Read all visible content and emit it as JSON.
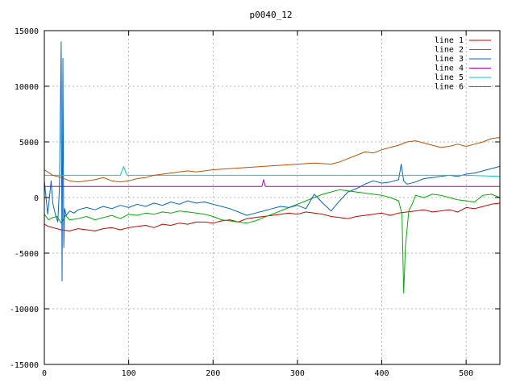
{
  "chart_data": {
    "type": "line",
    "title": "p0040_12",
    "xlabel": "",
    "ylabel": "",
    "xlim": [
      0,
      540
    ],
    "ylim": [
      -15000,
      15000
    ],
    "xticks": [
      0,
      100,
      200,
      300,
      400,
      500
    ],
    "yticks": [
      -15000,
      -10000,
      -5000,
      0,
      5000,
      10000,
      15000
    ],
    "grid": true,
    "legend_position": "top-right",
    "series": [
      {
        "name": "line 1",
        "color": "#cc0000",
        "x": [
          0,
          5,
          10,
          20,
          30,
          40,
          50,
          60,
          70,
          80,
          90,
          100,
          110,
          120,
          130,
          140,
          150,
          160,
          170,
          180,
          190,
          200,
          210,
          220,
          230,
          240,
          250,
          260,
          270,
          280,
          290,
          300,
          310,
          320,
          330,
          340,
          350,
          360,
          370,
          380,
          390,
          400,
          410,
          420,
          430,
          440,
          450,
          460,
          470,
          480,
          490,
          500,
          510,
          520,
          530,
          540
        ],
        "y": [
          -2400,
          -2600,
          -2700,
          -2900,
          -3000,
          -2800,
          -2900,
          -3000,
          -2800,
          -2700,
          -2900,
          -2700,
          -2600,
          -2500,
          -2700,
          -2400,
          -2500,
          -2300,
          -2400,
          -2200,
          -2200,
          -2300,
          -2100,
          -2000,
          -2200,
          -1900,
          -1800,
          -1700,
          -1600,
          -1500,
          -1400,
          -1500,
          -1300,
          -1400,
          -1500,
          -1700,
          -1800,
          -1900,
          -1700,
          -1600,
          -1500,
          -1400,
          -1600,
          -1400,
          -1300,
          -1200,
          -1100,
          -1300,
          -1200,
          -1100,
          -1300,
          -900,
          -1000,
          -800,
          -600,
          -500
        ]
      },
      {
        "name": "line 2",
        "color": "#00b000",
        "x": [
          0,
          5,
          10,
          15,
          20,
          25,
          30,
          40,
          50,
          60,
          70,
          80,
          90,
          100,
          110,
          120,
          130,
          140,
          150,
          160,
          170,
          180,
          190,
          200,
          210,
          220,
          230,
          240,
          250,
          260,
          270,
          280,
          290,
          300,
          310,
          320,
          330,
          340,
          350,
          360,
          370,
          380,
          390,
          400,
          410,
          420,
          424,
          426,
          428,
          432,
          436,
          440,
          450,
          460,
          470,
          480,
          490,
          500,
          510,
          520,
          530,
          540
        ],
        "y": [
          -1500,
          -2000,
          -1800,
          -1700,
          -2300,
          -1600,
          -2000,
          -1900,
          -1700,
          -2000,
          -1800,
          -1600,
          -1900,
          -1500,
          -1600,
          -1400,
          -1500,
          -1300,
          -1400,
          -1200,
          -1300,
          -1400,
          -1500,
          -1700,
          -2000,
          -2100,
          -2200,
          -2300,
          -2100,
          -1800,
          -1500,
          -1200,
          -900,
          -600,
          -300,
          0,
          300,
          500,
          700,
          600,
          500,
          400,
          300,
          200,
          0,
          -300,
          -1500,
          -8600,
          -4500,
          -1200,
          -600,
          200,
          0,
          300,
          200,
          0,
          -200,
          -300,
          -400,
          200,
          300,
          0
        ]
      },
      {
        "name": "line 3",
        "color": "#0066cc",
        "x": [
          0,
          4,
          8,
          10,
          13,
          16,
          18,
          20,
          21,
          22,
          23,
          24,
          26,
          28,
          30,
          35,
          40,
          50,
          60,
          70,
          80,
          90,
          100,
          110,
          120,
          130,
          140,
          150,
          160,
          170,
          180,
          190,
          200,
          210,
          220,
          230,
          240,
          250,
          260,
          270,
          280,
          290,
          300,
          310,
          320,
          330,
          340,
          350,
          360,
          370,
          380,
          390,
          400,
          410,
          420,
          423,
          426,
          430,
          440,
          450,
          460,
          470,
          480,
          490,
          500,
          510,
          520,
          530,
          540
        ],
        "y": [
          1500,
          -1500,
          1500,
          -500,
          -1500,
          -2200,
          1000,
          14000,
          -7500,
          12500,
          -4500,
          -1000,
          -1600,
          -1400,
          -1200,
          -1400,
          -1100,
          -900,
          -1100,
          -800,
          -1000,
          -700,
          -900,
          -600,
          -800,
          -500,
          -700,
          -400,
          -600,
          -300,
          -500,
          -400,
          -600,
          -800,
          -1000,
          -1300,
          -1600,
          -1400,
          -1200,
          -1000,
          -800,
          -900,
          -700,
          -1000,
          300,
          -500,
          -1200,
          -300,
          500,
          800,
          1200,
          1500,
          1300,
          1400,
          1600,
          3000,
          1500,
          1200,
          1400,
          1700,
          1800,
          1900,
          2000,
          1900,
          2100,
          2200,
          2400,
          2600,
          2800
        ]
      },
      {
        "name": "line 4",
        "color": "#b000b0",
        "x": [
          0,
          100,
          200,
          258,
          260,
          262,
          300,
          400,
          540
        ],
        "y": [
          1000,
          1000,
          1000,
          1000,
          1600,
          1000,
          1000,
          1000,
          1000
        ]
      },
      {
        "name": "line 5",
        "color": "#00cccc",
        "x": [
          0,
          50,
          90,
          94,
          98,
          150,
          200,
          300,
          400,
          500,
          540
        ],
        "y": [
          2000,
          2000,
          2000,
          2800,
          2000,
          2000,
          2000,
          2000,
          2000,
          2000,
          1900
        ]
      },
      {
        "name": "line 6",
        "color": "#c05000",
        "x": [
          0,
          10,
          20,
          30,
          40,
          50,
          60,
          70,
          80,
          90,
          100,
          110,
          120,
          130,
          140,
          150,
          160,
          170,
          180,
          190,
          200,
          220,
          240,
          260,
          280,
          300,
          320,
          340,
          350,
          360,
          370,
          380,
          390,
          400,
          410,
          420,
          430,
          440,
          450,
          460,
          470,
          480,
          490,
          500,
          510,
          520,
          530,
          540
        ],
        "y": [
          2500,
          2000,
          1800,
          1500,
          1400,
          1500,
          1600,
          1800,
          1500,
          1400,
          1500,
          1700,
          1800,
          2000,
          2100,
          2200,
          2300,
          2400,
          2300,
          2400,
          2500,
          2600,
          2700,
          2800,
          2900,
          3000,
          3100,
          3000,
          3200,
          3500,
          3800,
          4100,
          4000,
          4300,
          4500,
          4700,
          5000,
          5100,
          4900,
          4700,
          4500,
          4600,
          4800,
          4600,
          4800,
          5000,
          5300,
          5400
        ]
      }
    ]
  }
}
